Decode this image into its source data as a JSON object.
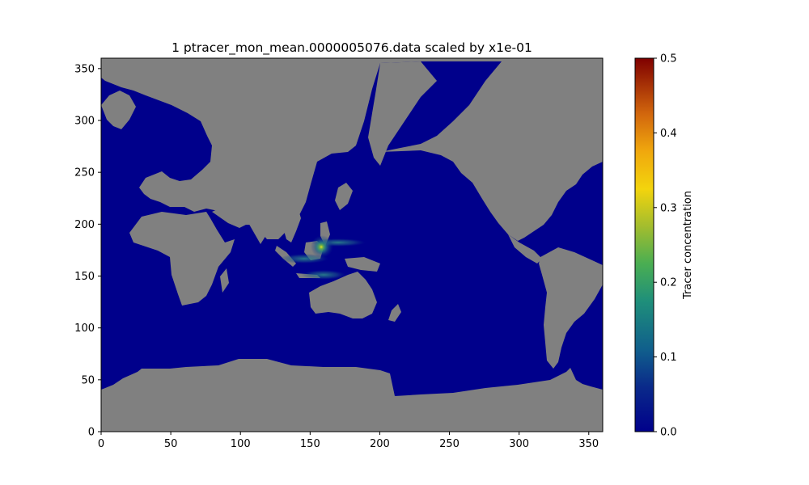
{
  "chart_data": {
    "type": "heatmap",
    "title": "1 ptracer_mon_mean.0000005076.data scaled by x1e-01",
    "xlabel": "",
    "ylabel": "",
    "xlim": [
      0,
      360
    ],
    "ylim": [
      0,
      360
    ],
    "x_ticks": [
      "0",
      "50",
      "100",
      "150",
      "200",
      "250",
      "300",
      "350"
    ],
    "y_ticks": [
      "0",
      "50",
      "100",
      "150",
      "200",
      "250",
      "300",
      "350"
    ],
    "land_color": "#808080",
    "ocean_color": "#00008b",
    "colorbar": {
      "label": "Tracer concentration",
      "range": [
        0,
        0.5
      ],
      "ticks": [
        "0.0",
        "0.1",
        "0.2",
        "0.3",
        "0.4",
        "0.5"
      ],
      "colormap": "jet-like (dark blue → teal → green → yellow → orange → dark red)"
    },
    "hotspot": {
      "x": 158,
      "y": 178,
      "peak_value": 0.3
    }
  }
}
